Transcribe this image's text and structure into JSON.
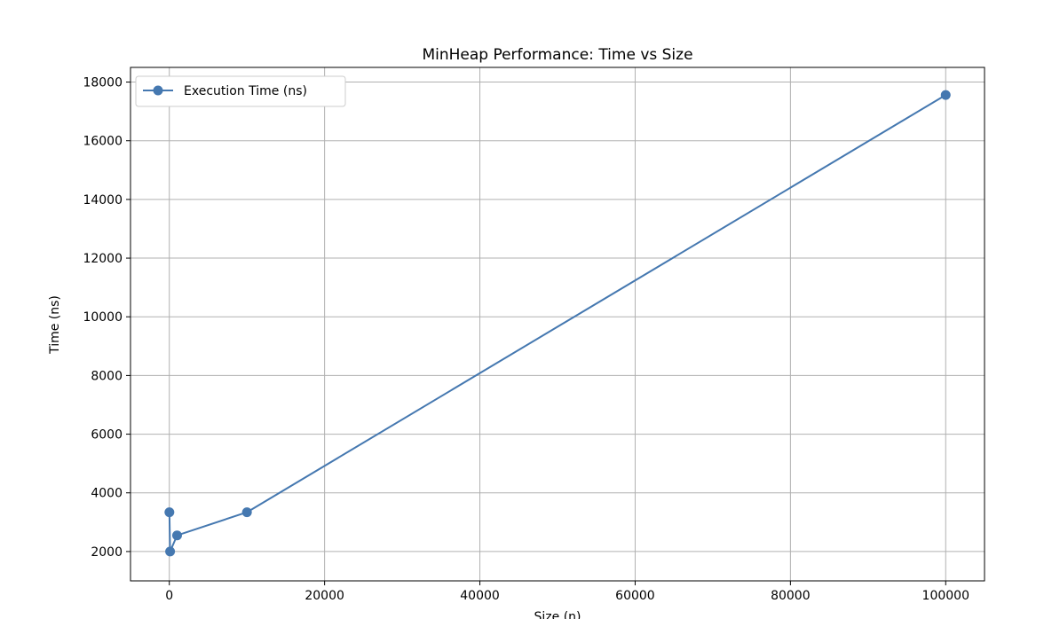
{
  "chart_data": {
    "type": "line",
    "title": "MinHeap Performance: Time vs Size",
    "xlabel": "Size (n)",
    "ylabel": "Time (ns)",
    "xlim": [
      -5000,
      105000
    ],
    "ylim": [
      1000,
      18500
    ],
    "x_ticks": [
      0,
      20000,
      40000,
      60000,
      80000,
      100000
    ],
    "x_tick_labels": [
      "0",
      "20000",
      "40000",
      "60000",
      "80000",
      "100000"
    ],
    "y_ticks": [
      2000,
      4000,
      6000,
      8000,
      10000,
      12000,
      14000,
      16000,
      18000
    ],
    "y_tick_labels": [
      "2000",
      "4000",
      "6000",
      "8000",
      "10000",
      "12000",
      "14000",
      "16000",
      "18000"
    ],
    "grid": true,
    "legend_position": "upper-left",
    "series": [
      {
        "name": "Execution Time (ns)",
        "color": "#4578b0",
        "marker": "circle",
        "x": [
          10,
          100,
          1000,
          10000,
          100000
        ],
        "y": [
          3340,
          2000,
          2550,
          3340,
          17560
        ]
      }
    ]
  }
}
